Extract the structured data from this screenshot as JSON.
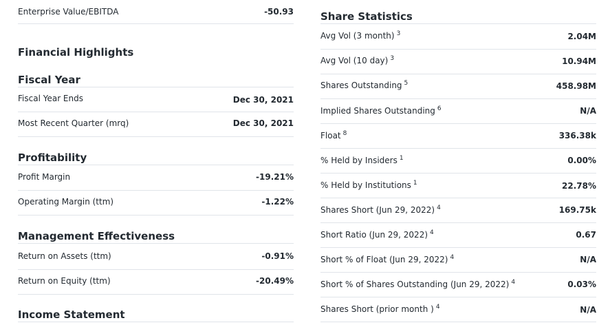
{
  "left": {
    "top_row": {
      "label": "Enterprise Value/EBITDA",
      "value": "-50.93"
    },
    "financial_highlights": "Financial Highlights",
    "fiscal_year": {
      "title": "Fiscal Year",
      "rows": [
        {
          "label": "Fiscal Year Ends",
          "value": "Dec 30, 2021"
        },
        {
          "label": "Most Recent Quarter (mrq)",
          "value": "Dec 30, 2021"
        }
      ]
    },
    "profitability": {
      "title": "Profitability",
      "rows": [
        {
          "label": "Profit Margin",
          "value": "-19.21%"
        },
        {
          "label": "Operating Margin (ttm)",
          "value": "-1.22%"
        }
      ]
    },
    "management_effectiveness": {
      "title": "Management Effectiveness",
      "rows": [
        {
          "label": "Return on Assets (ttm)",
          "value": "-0.91%"
        },
        {
          "label": "Return on Equity (ttm)",
          "value": "-20.49%"
        }
      ]
    },
    "income_statement": "Income Statement"
  },
  "right": {
    "title": "Share Statistics",
    "rows": [
      {
        "label": "Avg Vol (3 month)",
        "sup": "3",
        "value": "2.04M"
      },
      {
        "label": "Avg Vol (10 day)",
        "sup": "3",
        "value": "10.94M"
      },
      {
        "label": "Shares Outstanding",
        "sup": "5",
        "value": "458.98M"
      },
      {
        "label": "Implied Shares Outstanding",
        "sup": "6",
        "value": "N/A"
      },
      {
        "label": "Float",
        "sup": "8",
        "value": "336.38k"
      },
      {
        "label": "% Held by Insiders",
        "sup": "1",
        "value": "0.00%"
      },
      {
        "label": "% Held by Institutions",
        "sup": "1",
        "value": "22.78%"
      },
      {
        "label": "Shares Short (Jun 29, 2022)",
        "sup": "4",
        "value": "169.75k"
      },
      {
        "label": "Short Ratio (Jun 29, 2022)",
        "sup": "4",
        "value": "0.67"
      },
      {
        "label": "Short % of Float (Jun 29, 2022)",
        "sup": "4",
        "value": "N/A"
      },
      {
        "label": "Short % of Shares Outstanding (Jun 29, 2022)",
        "sup": "4",
        "value": "0.03%"
      },
      {
        "label": "Shares Short (prior month )",
        "sup": "4",
        "value": "N/A"
      }
    ]
  }
}
